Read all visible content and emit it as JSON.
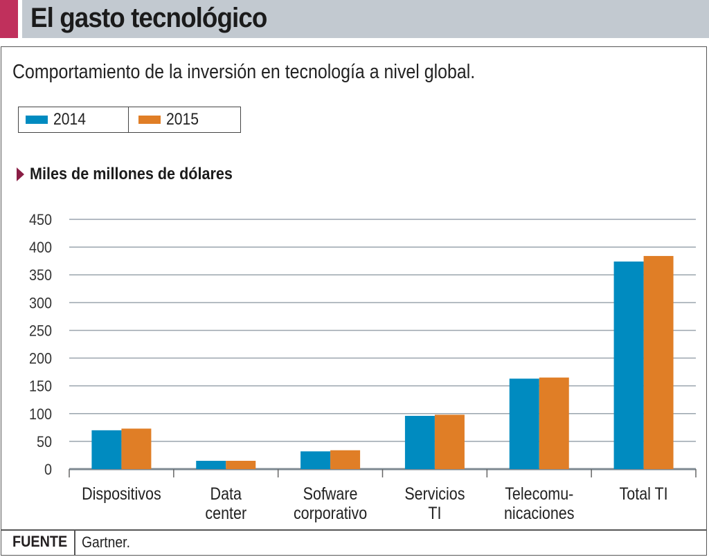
{
  "header": {
    "title": "El gasto tecnológico"
  },
  "subtitle": "Comportamiento de la inversión en tecnología a nivel global.",
  "unit_label": "Miles de millones de dólares",
  "footer": {
    "label": "FUENTE",
    "source": "Gartner."
  },
  "colors": {
    "accent": "#c0305c",
    "series_2014": "#008bc0",
    "series_2015": "#e07e26",
    "grid": "#9aa4ad",
    "marker": "#8a1e45"
  },
  "chart_data": {
    "type": "bar",
    "title": "El gasto tecnológico",
    "subtitle": "Comportamiento de la inversión en tecnología a nivel global.",
    "ylabel": "Miles de millones de dólares",
    "xlabel": "",
    "categories": [
      [
        "Dispositivos"
      ],
      [
        "Data",
        "center"
      ],
      [
        "Sofware",
        "corporativo"
      ],
      [
        "Servicios",
        "TI"
      ],
      [
        "Telecomu-",
        "nicaciones"
      ],
      [
        "Total TI"
      ]
    ],
    "series": [
      {
        "name": "2014",
        "color": "#008bc0",
        "values": [
          70,
          15,
          32,
          96,
          163,
          374
        ]
      },
      {
        "name": "2015",
        "color": "#e07e26",
        "values": [
          73,
          15,
          34,
          98,
          165,
          384
        ]
      }
    ],
    "ylim": [
      0,
      450
    ],
    "yticks": [
      0,
      50,
      100,
      150,
      200,
      250,
      300,
      350,
      400,
      450
    ],
    "grid": true,
    "legend": "top-left"
  }
}
